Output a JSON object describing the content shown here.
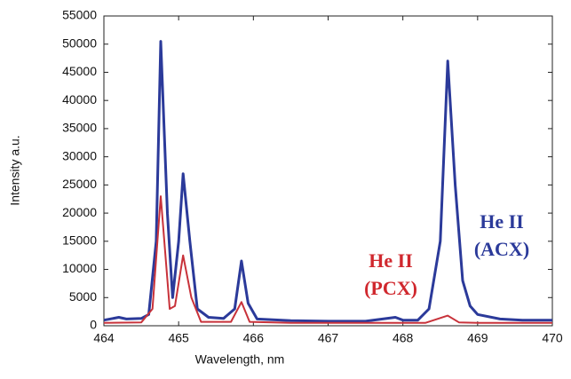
{
  "chart_data": {
    "type": "line",
    "x_label": "Wavelength, nm",
    "y_label": "Intensity a.u.",
    "xlim": [
      464,
      470
    ],
    "xticks": [
      464,
      465,
      466,
      467,
      468,
      469,
      470
    ],
    "ylim": [
      0,
      55000
    ],
    "yticks": [
      0,
      5000,
      10000,
      15000,
      20000,
      25000,
      30000,
      35000,
      40000,
      45000,
      50000,
      55000
    ],
    "series": [
      {
        "color": "#2b3a9a",
        "x": [
          464.0,
          464.2,
          464.3,
          464.5,
          464.6,
          464.7,
          464.76,
          464.85,
          464.92,
          465.0,
          465.06,
          465.15,
          465.25,
          465.4,
          465.6,
          465.75,
          465.84,
          465.93,
          466.05,
          466.5,
          467.0,
          467.5,
          467.9,
          468.0,
          468.2,
          468.35,
          468.5,
          468.6,
          468.7,
          468.8,
          468.9,
          469.0,
          469.3,
          469.6,
          470.0
        ],
        "values": [
          1000,
          1500,
          1200,
          1300,
          2000,
          15000,
          50500,
          20000,
          5000,
          15000,
          27000,
          15000,
          3000,
          1500,
          1300,
          3000,
          11500,
          4000,
          1200,
          900,
          800,
          800,
          1500,
          1000,
          1000,
          3000,
          15000,
          47000,
          25000,
          8000,
          3500,
          2000,
          1200,
          1000,
          1000
        ]
      },
      {
        "color": "#c8323a",
        "x": [
          464.0,
          464.5,
          464.65,
          464.76,
          464.88,
          464.95,
          465.06,
          465.17,
          465.3,
          465.7,
          465.84,
          465.95,
          466.5,
          467.5,
          468.3,
          468.6,
          468.75,
          469.0,
          470.0
        ],
        "values": [
          500,
          600,
          3000,
          23000,
          3000,
          3500,
          12500,
          5000,
          700,
          700,
          4200,
          700,
          500,
          500,
          500,
          1800,
          600,
          500,
          500
        ]
      }
    ],
    "annotations": [
      {
        "lines": [
          "He II",
          "(ACX)"
        ],
        "color": "#2b3a9a"
      },
      {
        "lines": [
          "He II",
          "(PCX)"
        ],
        "color": "#d0282e"
      }
    ]
  }
}
